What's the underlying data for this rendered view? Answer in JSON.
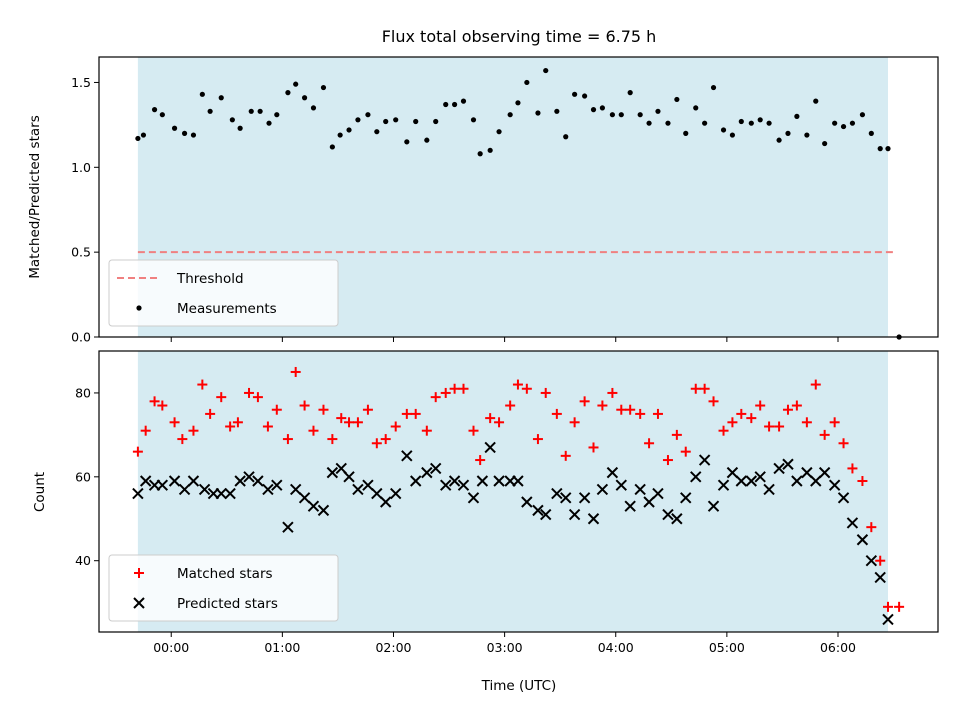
{
  "colors": {
    "span": "#add8e6",
    "threshold": "#f08080",
    "matched": "#ff0000",
    "predicted": "#000000",
    "measurement": "#000000"
  },
  "chart_data": [
    {
      "type": "scatter",
      "title": "Flux total observing time = 6.75 h",
      "xlabel": "",
      "ylabel": "Matched/Predicted stars",
      "x_unit": "hours since 00:00 UTC",
      "xlim": [
        -0.65,
        6.9
      ],
      "ylim": [
        0.0,
        1.65
      ],
      "yticks": [
        "0.0",
        "0.5",
        "1.0",
        "1.5"
      ],
      "grid": false,
      "legend_position": "lower-left",
      "observing_window": [
        -0.3,
        6.45
      ],
      "threshold": 0.5,
      "series": [
        {
          "name": "Threshold",
          "kind": "dashed-line",
          "x": [
            -0.3,
            6.5
          ],
          "y": [
            0.5,
            0.5
          ]
        },
        {
          "name": "Measurements",
          "kind": "dots",
          "x": [
            -0.3,
            -0.25,
            -0.15,
            -0.08,
            0.03,
            0.12,
            0.2,
            0.28,
            0.35,
            0.45,
            0.55,
            0.62,
            0.72,
            0.8,
            0.88,
            0.95,
            1.05,
            1.12,
            1.2,
            1.28,
            1.37,
            1.45,
            1.52,
            1.6,
            1.68,
            1.77,
            1.85,
            1.93,
            2.02,
            2.12,
            2.2,
            2.3,
            2.38,
            2.47,
            2.55,
            2.63,
            2.72,
            2.78,
            2.87,
            2.95,
            3.05,
            3.12,
            3.2,
            3.3,
            3.37,
            3.47,
            3.55,
            3.63,
            3.72,
            3.8,
            3.88,
            3.97,
            4.05,
            4.13,
            4.22,
            4.3,
            4.38,
            4.47,
            4.55,
            4.63,
            4.72,
            4.8,
            4.88,
            4.97,
            5.05,
            5.13,
            5.22,
            5.3,
            5.38,
            5.47,
            5.55,
            5.63,
            5.72,
            5.8,
            5.88,
            5.97,
            6.05,
            6.13,
            6.22,
            6.3,
            6.38,
            6.45,
            6.55
          ],
          "y": [
            1.17,
            1.19,
            1.34,
            1.31,
            1.23,
            1.2,
            1.19,
            1.43,
            1.33,
            1.41,
            1.28,
            1.23,
            1.33,
            1.33,
            1.26,
            1.31,
            1.44,
            1.49,
            1.41,
            1.35,
            1.47,
            1.12,
            1.19,
            1.22,
            1.28,
            1.31,
            1.21,
            1.27,
            1.28,
            1.15,
            1.27,
            1.16,
            1.27,
            1.37,
            1.37,
            1.39,
            1.28,
            1.08,
            1.1,
            1.21,
            1.31,
            1.38,
            1.5,
            1.32,
            1.57,
            1.33,
            1.18,
            1.43,
            1.42,
            1.34,
            1.35,
            1.31,
            1.31,
            1.44,
            1.31,
            1.26,
            1.33,
            1.26,
            1.4,
            1.2,
            1.35,
            1.26,
            1.47,
            1.22,
            1.19,
            1.27,
            1.26,
            1.28,
            1.26,
            1.16,
            1.2,
            1.3,
            1.19,
            1.39,
            1.14,
            1.26,
            1.24,
            1.26,
            1.31,
            1.2,
            1.11,
            1.11,
            0.0
          ]
        }
      ]
    },
    {
      "type": "scatter",
      "title": "",
      "xlabel": "Time (UTC)",
      "ylabel": "Count",
      "x_unit": "hours since 00:00 UTC",
      "xlim": [
        -0.65,
        6.9
      ],
      "ylim": [
        23,
        90
      ],
      "xticks": [
        "00:00",
        "01:00",
        "02:00",
        "03:00",
        "04:00",
        "05:00",
        "06:00"
      ],
      "yticks": [
        "40",
        "60",
        "80"
      ],
      "grid": false,
      "legend_position": "lower-left",
      "observing_window": [
        -0.3,
        6.45
      ],
      "series": [
        {
          "name": "Matched stars",
          "kind": "plus",
          "x": [
            -0.3,
            -0.23,
            -0.15,
            -0.08,
            0.03,
            0.1,
            0.2,
            0.28,
            0.35,
            0.45,
            0.53,
            0.6,
            0.7,
            0.78,
            0.87,
            0.95,
            1.05,
            1.12,
            1.2,
            1.28,
            1.37,
            1.45,
            1.53,
            1.6,
            1.68,
            1.77,
            1.85,
            1.93,
            2.02,
            2.12,
            2.2,
            2.3,
            2.38,
            2.47,
            2.55,
            2.63,
            2.72,
            2.78,
            2.87,
            2.95,
            3.05,
            3.12,
            3.2,
            3.3,
            3.37,
            3.47,
            3.55,
            3.63,
            3.72,
            3.8,
            3.88,
            3.97,
            4.05,
            4.13,
            4.22,
            4.3,
            4.38,
            4.47,
            4.55,
            4.63,
            4.72,
            4.8,
            4.88,
            4.97,
            5.05,
            5.13,
            5.22,
            5.3,
            5.38,
            5.47,
            5.55,
            5.63,
            5.72,
            5.8,
            5.88,
            5.97,
            6.05,
            6.13,
            6.22,
            6.3,
            6.38,
            6.45,
            6.55
          ],
          "y": [
            66,
            71,
            78,
            77,
            73,
            69,
            71,
            82,
            75,
            79,
            72,
            73,
            80,
            79,
            72,
            76,
            69,
            85,
            77,
            71,
            76,
            69,
            74,
            73,
            73,
            76,
            68,
            69,
            72,
            75,
            75,
            71,
            79,
            80,
            81,
            81,
            71,
            64,
            74,
            73,
            77,
            82,
            81,
            69,
            80,
            75,
            65,
            73,
            78,
            67,
            77,
            80,
            76,
            76,
            75,
            68,
            75,
            64,
            70,
            66,
            81,
            81,
            78,
            71,
            73,
            75,
            74,
            77,
            72,
            72,
            76,
            77,
            73,
            82,
            70,
            73,
            68,
            62,
            59,
            48,
            40,
            29,
            29
          ]
        },
        {
          "name": "Predicted stars",
          "kind": "x",
          "x": [
            -0.3,
            -0.23,
            -0.15,
            -0.08,
            0.03,
            0.12,
            0.2,
            0.3,
            0.38,
            0.45,
            0.53,
            0.62,
            0.7,
            0.78,
            0.87,
            0.95,
            1.05,
            1.12,
            1.2,
            1.28,
            1.37,
            1.45,
            1.53,
            1.6,
            1.68,
            1.77,
            1.85,
            1.93,
            2.02,
            2.12,
            2.2,
            2.3,
            2.38,
            2.47,
            2.55,
            2.63,
            2.72,
            2.8,
            2.87,
            2.95,
            3.05,
            3.12,
            3.2,
            3.3,
            3.37,
            3.47,
            3.55,
            3.63,
            3.72,
            3.8,
            3.88,
            3.97,
            4.05,
            4.13,
            4.22,
            4.3,
            4.38,
            4.47,
            4.55,
            4.63,
            4.72,
            4.8,
            4.88,
            4.97,
            5.05,
            5.13,
            5.22,
            5.3,
            5.38,
            5.47,
            5.55,
            5.63,
            5.72,
            5.8,
            5.88,
            5.97,
            6.05,
            6.13,
            6.22,
            6.3,
            6.38,
            6.45
          ],
          "y": [
            56,
            59,
            58,
            58,
            59,
            57,
            59,
            57,
            56,
            56,
            56,
            59,
            60,
            59,
            57,
            58,
            48,
            57,
            55,
            53,
            52,
            61,
            62,
            60,
            57,
            58,
            56,
            54,
            56,
            65,
            59,
            61,
            62,
            58,
            59,
            58,
            55,
            59,
            67,
            59,
            59,
            59,
            54,
            52,
            51,
            56,
            55,
            51,
            55,
            50,
            57,
            61,
            58,
            53,
            57,
            54,
            56,
            51,
            50,
            55,
            60,
            64,
            53,
            58,
            61,
            59,
            59,
            60,
            57,
            62,
            63,
            59,
            61,
            59,
            61,
            58,
            55,
            49,
            45,
            40,
            36,
            26
          ]
        }
      ]
    }
  ]
}
